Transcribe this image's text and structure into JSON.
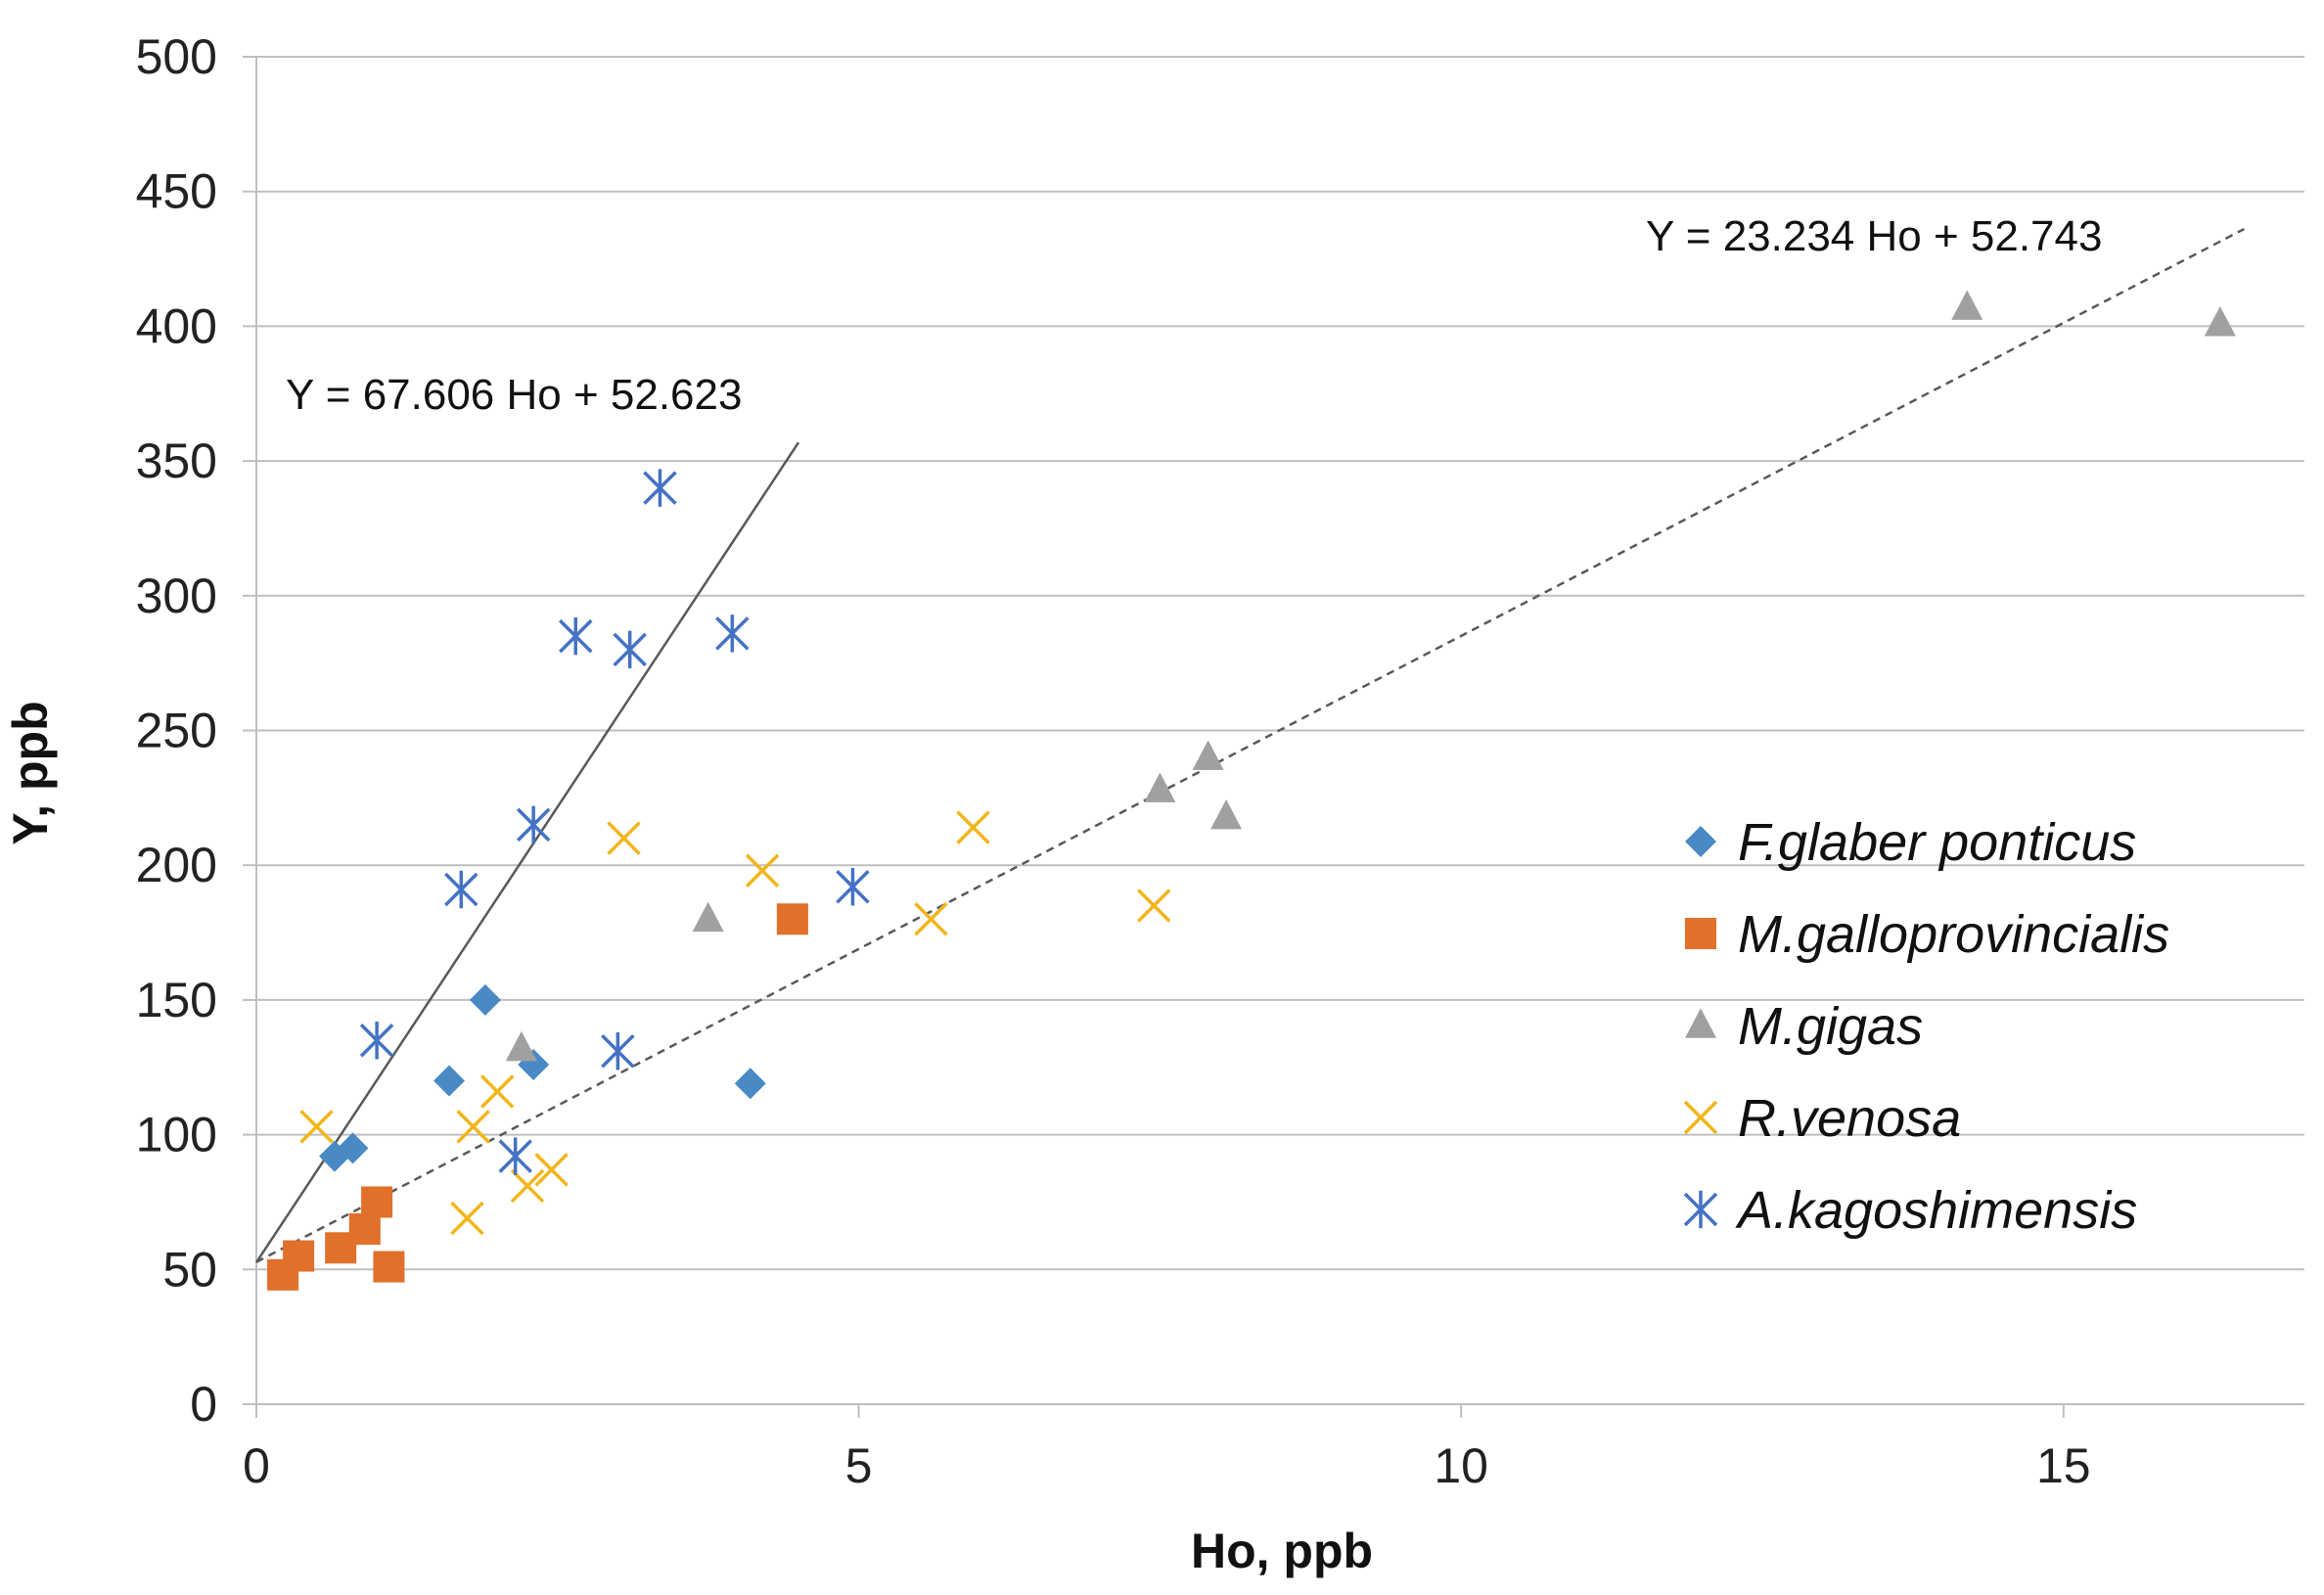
{
  "chart_data": {
    "type": "scatter",
    "title": "",
    "xlabel": "Ho, ppb",
    "ylabel": "Y, ppb",
    "xlim": [
      0,
      17
    ],
    "ylim": [
      0,
      500
    ],
    "xticks": [
      0,
      5,
      10,
      15
    ],
    "yticks": [
      0,
      50,
      100,
      150,
      200,
      250,
      300,
      350,
      400,
      450,
      500
    ],
    "xtick_labels": [
      "0",
      "5",
      "10",
      "15"
    ],
    "ytick_labels": [
      "0",
      "50",
      "100",
      "150",
      "200",
      "250",
      "300",
      "350",
      "400",
      "450",
      "500"
    ],
    "grid": "horizontal",
    "legend_position": "right",
    "series": [
      {
        "name": "F.glaber ponticus",
        "marker": "diamond",
        "color": "#4a8ac4",
        "points": [
          [
            0.65,
            92
          ],
          [
            0.8,
            95
          ],
          [
            1.6,
            120
          ],
          [
            1.9,
            150
          ],
          [
            2.3,
            126
          ],
          [
            4.1,
            119
          ]
        ]
      },
      {
        "name": "M.galloprovincialis",
        "marker": "square",
        "color": "#e0702a",
        "points": [
          [
            0.22,
            48
          ],
          [
            0.35,
            55
          ],
          [
            0.7,
            58
          ],
          [
            0.9,
            65
          ],
          [
            1.0,
            75
          ],
          [
            1.1,
            51
          ],
          [
            4.45,
            180
          ]
        ]
      },
      {
        "name": "M.gigas",
        "marker": "triangle",
        "color": "#a0a0a0",
        "points": [
          [
            2.2,
            132
          ],
          [
            3.75,
            180
          ],
          [
            7.5,
            228
          ],
          [
            7.9,
            240
          ],
          [
            8.05,
            218
          ],
          [
            14.2,
            407
          ],
          [
            16.3,
            401
          ]
        ]
      },
      {
        "name": "R.venosa",
        "marker": "x",
        "color": "#f2b51a",
        "points": [
          [
            0.5,
            103
          ],
          [
            1.8,
            103
          ],
          [
            1.75,
            69
          ],
          [
            2.0,
            116
          ],
          [
            2.25,
            81
          ],
          [
            2.45,
            87
          ],
          [
            3.05,
            210
          ],
          [
            4.2,
            198
          ],
          [
            5.6,
            180
          ],
          [
            5.95,
            214
          ],
          [
            7.45,
            185
          ]
        ]
      },
      {
        "name": "A.kagoshimensis",
        "marker": "asterisk",
        "color": "#4472c4",
        "points": [
          [
            1.0,
            135
          ],
          [
            1.7,
            191
          ],
          [
            2.15,
            92
          ],
          [
            2.3,
            215
          ],
          [
            2.65,
            285
          ],
          [
            3.1,
            280
          ],
          [
            3.35,
            340
          ],
          [
            3.95,
            286
          ],
          [
            3.0,
            131
          ],
          [
            4.95,
            192
          ]
        ]
      }
    ],
    "trendlines": [
      {
        "label": "Y = 67.606 Ho + 52.623",
        "slope": 67.606,
        "intercept": 52.623,
        "x_range": [
          0,
          4.5
        ],
        "style": "solid",
        "color": "#595959"
      },
      {
        "label": "Y = 23.234 Ho + 52.743",
        "slope": 23.234,
        "intercept": 52.743,
        "x_range": [
          0,
          16.5
        ],
        "style": "dashed",
        "color": "#595959"
      }
    ]
  }
}
